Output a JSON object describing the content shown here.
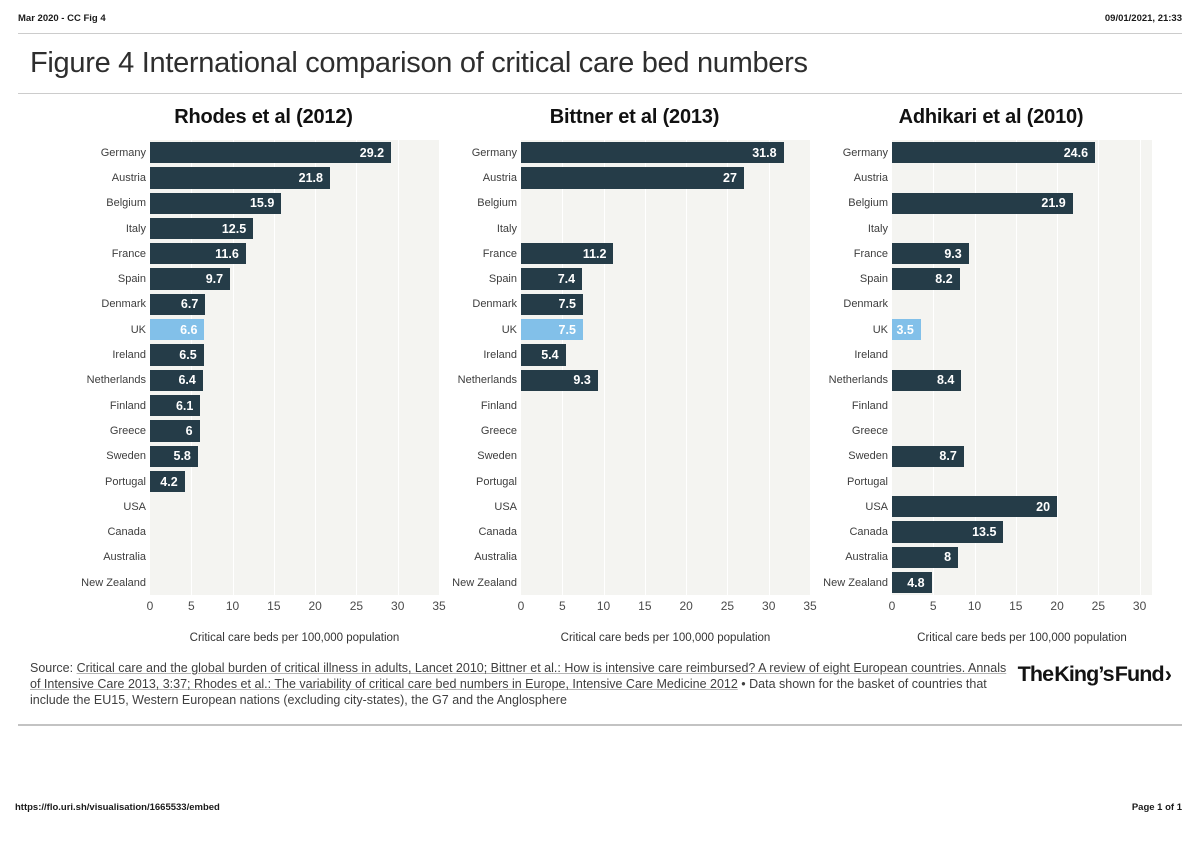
{
  "header": {
    "left": "Mar 2020 - CC Fig 4",
    "right": "09/01/2021, 21:33"
  },
  "title": "Figure 4 International comparison of critical care bed numbers",
  "source": {
    "prefix": "Source: ",
    "link_text": "Critical care and the global burden of critical illness in adults, Lancet 2010; Bittner et al.: How is intensive care reimbursed? A review of eight European countries. Annals of Intensive Care 2013, 3:37; Rhodes et al.: The variability of critical care bed numbers in Europe, Intensive Care Medicine 2012",
    "suffix": " • Data shown for the basket of countries that include the EU15, Western European nations (excluding city-states), the G7 and the Anglosphere"
  },
  "logo": {
    "text": "The King’s Fund",
    "chevron": "›"
  },
  "footer": {
    "url": "https://flo.uri.sh/visualisation/1665533/embed",
    "page": "Page 1 of 1"
  },
  "colors": {
    "bar": "#253c48",
    "highlight": "#82c0e9",
    "plot_bg": "#f4f4f1",
    "grid": "#ffffff"
  },
  "chart_data": [
    {
      "type": "bar",
      "orientation": "horizontal",
      "title": "Rhodes et al (2012)",
      "xlabel": "Critical care beds per 100,000 population",
      "categories": [
        "Germany",
        "Austria",
        "Belgium",
        "Italy",
        "France",
        "Spain",
        "Denmark",
        "UK",
        "Ireland",
        "Netherlands",
        "Finland",
        "Greece",
        "Sweden",
        "Portugal",
        "USA",
        "Canada",
        "Australia",
        "New Zealand"
      ],
      "values": [
        29.2,
        21.8,
        15.9,
        12.5,
        11.6,
        9.7,
        6.7,
        6.6,
        6.5,
        6.4,
        6.1,
        6,
        5.8,
        4.2,
        null,
        null,
        null,
        null
      ],
      "highlight_category": "UK",
      "xlim": [
        0,
        35
      ],
      "ticks": [
        0,
        5,
        10,
        15,
        20,
        25,
        30,
        35
      ],
      "grid": true,
      "legend": "none"
    },
    {
      "type": "bar",
      "orientation": "horizontal",
      "title": "Bittner et al (2013)",
      "xlabel": "Critical care beds per 100,000 population",
      "categories": [
        "Germany",
        "Austria",
        "Belgium",
        "Italy",
        "France",
        "Spain",
        "Denmark",
        "UK",
        "Ireland",
        "Netherlands",
        "Finland",
        "Greece",
        "Sweden",
        "Portugal",
        "USA",
        "Canada",
        "Australia",
        "New Zealand"
      ],
      "values": [
        31.8,
        27,
        null,
        null,
        11.2,
        7.4,
        7.5,
        7.5,
        5.4,
        9.3,
        null,
        null,
        null,
        null,
        null,
        null,
        null,
        null
      ],
      "highlight_category": "UK",
      "xlim": [
        0,
        35
      ],
      "ticks": [
        0,
        5,
        10,
        15,
        20,
        25,
        30,
        35
      ],
      "grid": true,
      "legend": "none"
    },
    {
      "type": "bar",
      "orientation": "horizontal",
      "title": "Adhikari et al (2010)",
      "xlabel": "Critical care beds per 100,000 population",
      "categories": [
        "Germany",
        "Austria",
        "Belgium",
        "Italy",
        "France",
        "Spain",
        "Denmark",
        "UK",
        "Ireland",
        "Netherlands",
        "Finland",
        "Greece",
        "Sweden",
        "Portugal",
        "USA",
        "Canada",
        "Australia",
        "New Zealand"
      ],
      "values": [
        24.6,
        null,
        21.9,
        null,
        9.3,
        8.2,
        null,
        3.5,
        null,
        8.4,
        null,
        null,
        8.7,
        null,
        20,
        13.5,
        8,
        4.8
      ],
      "highlight_category": "UK",
      "xlim": [
        0,
        31.5
      ],
      "ticks": [
        0,
        5,
        10,
        15,
        20,
        25,
        30
      ],
      "grid": true,
      "legend": "none"
    }
  ]
}
